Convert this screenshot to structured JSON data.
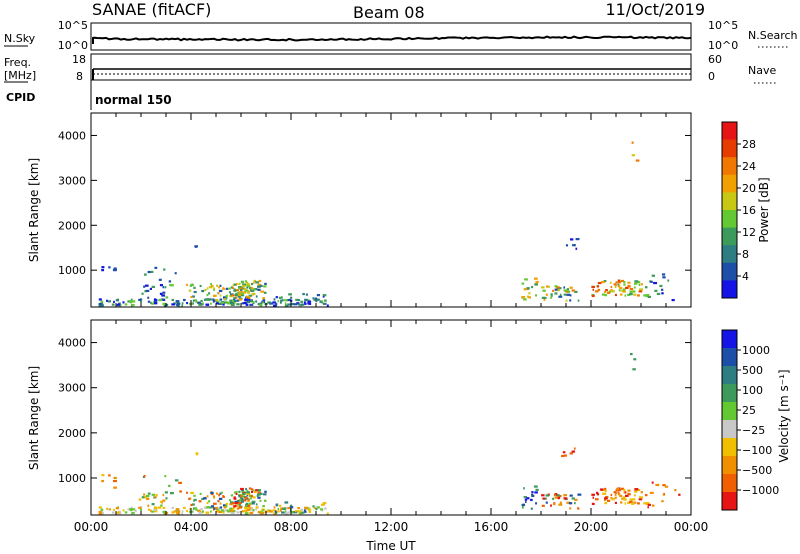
{
  "header": {
    "station": "SANAE (fitACF)",
    "beam": "Beam 08",
    "date": "11/Oct/2019"
  },
  "params": {
    "nsky_label": "N.Sky",
    "nsearch_label": "N.Search",
    "freq_label_top": "Freq.",
    "freq_label_unit": "[MHz]",
    "nave_label": "Nave",
    "cpid_label": "CPID",
    "cpid_value": "normal 150",
    "noise_ticks": [
      "10^5",
      "10^0"
    ],
    "noise_right_ticks": [
      "10^5",
      "10^0"
    ],
    "freq_ticks": [
      "18",
      "8"
    ],
    "nave_ticks": [
      "60",
      "0"
    ]
  },
  "colors": {
    "power_scale": [
      "#1414e6",
      "#1e4fa8",
      "#2d7d82",
      "#3c9a5a",
      "#64c832",
      "#c8c814",
      "#f0a000",
      "#f07800",
      "#e63c00",
      "#e61414"
    ],
    "velocity_scale": [
      "#1414e6",
      "#1e4fa8",
      "#2d7d82",
      "#3c9a5a",
      "#64c832",
      "#c8c8c8",
      "#f0c000",
      "#f09000",
      "#f06000",
      "#e61414"
    ]
  },
  "chart_data": [
    {
      "type": "heatmap",
      "name": "power",
      "ylabel": "Slant Range [km]",
      "yticks": [
        1000,
        2000,
        3000,
        4000
      ],
      "ylim": [
        180,
        4500
      ],
      "xlim_hours": [
        0,
        24
      ],
      "colorbar_label": "Power [dB]",
      "colorbar_ticks": [
        "4",
        "8",
        "12",
        "16",
        "20",
        "24",
        "28"
      ],
      "clusters": [
        {
          "t": [
            0.4,
            0.9
          ],
          "r": [
            850,
            1050
          ],
          "n": 5,
          "mix": [
            0,
            1
          ]
        },
        {
          "t": [
            0.3,
            9.5
          ],
          "r": [
            190,
            330
          ],
          "n": 150,
          "mix": [
            0,
            1,
            2,
            3,
            4
          ]
        },
        {
          "t": [
            1.8,
            3.2
          ],
          "r": [
            300,
            650
          ],
          "n": 22,
          "mix": [
            0,
            1,
            3,
            4
          ]
        },
        {
          "t": [
            2.0,
            3.6
          ],
          "r": [
            650,
            1050
          ],
          "n": 8,
          "mix": [
            3,
            4,
            1
          ]
        },
        {
          "t": [
            3.8,
            7.0
          ],
          "r": [
            280,
            680
          ],
          "n": 90,
          "mix": [
            2,
            3,
            4,
            5,
            6,
            1
          ]
        },
        {
          "t": [
            5.6,
            6.9
          ],
          "r": [
            350,
            750
          ],
          "n": 40,
          "mix": [
            4,
            5,
            6,
            7,
            3
          ]
        },
        {
          "t": [
            7.3,
            9.4
          ],
          "r": [
            200,
            450
          ],
          "n": 24,
          "mix": [
            0,
            1,
            2,
            3
          ]
        },
        {
          "t": [
            4.1,
            4.3
          ],
          "r": [
            1480,
            1560
          ],
          "n": 2,
          "mix": [
            1
          ]
        },
        {
          "t": [
            17.2,
            17.8
          ],
          "r": [
            300,
            800
          ],
          "n": 18,
          "mix": [
            3,
            4,
            5,
            6
          ]
        },
        {
          "t": [
            18.0,
            19.5
          ],
          "r": [
            300,
            650
          ],
          "n": 35,
          "mix": [
            1,
            3,
            4,
            5,
            6,
            7
          ]
        },
        {
          "t": [
            18.8,
            19.4
          ],
          "r": [
            1450,
            1700
          ],
          "n": 6,
          "mix": [
            0,
            1,
            3
          ]
        },
        {
          "t": [
            20.0,
            22.2
          ],
          "r": [
            400,
            750
          ],
          "n": 70,
          "mix": [
            4,
            5,
            6,
            7,
            3,
            8
          ]
        },
        {
          "t": [
            21.5,
            22.0
          ],
          "r": [
            3200,
            3950
          ],
          "n": 3,
          "mix": [
            7,
            5
          ]
        },
        {
          "t": [
            22.2,
            23.6
          ],
          "r": [
            300,
            900
          ],
          "n": 14,
          "mix": [
            0,
            1,
            3
          ]
        }
      ]
    },
    {
      "type": "heatmap",
      "name": "velocity",
      "ylabel": "Slant Range [km]",
      "yticks": [
        1000,
        2000,
        3000,
        4000
      ],
      "ylim": [
        180,
        4500
      ],
      "xlim_hours": [
        0,
        24
      ],
      "xticks": [
        "00:00",
        "04:00",
        "08:00",
        "12:00",
        "16:00",
        "20:00",
        "00:00"
      ],
      "xlabel": "Time UT",
      "colorbar_label": "Velocity [m s⁻¹]",
      "colorbar_ticks": [
        "1000",
        "500",
        "100",
        "25",
        "−25",
        "−100",
        "−500",
        "−1000"
      ],
      "clusters": [
        {
          "t": [
            0.4,
            0.9
          ],
          "r": [
            650,
            1050
          ],
          "n": 6,
          "mix": [
            6,
            7,
            8
          ]
        },
        {
          "t": [
            0.3,
            9.5
          ],
          "r": [
            190,
            330
          ],
          "n": 160,
          "mix": [
            6,
            7,
            5,
            4
          ]
        },
        {
          "t": [
            1.8,
            3.2
          ],
          "r": [
            300,
            650
          ],
          "n": 22,
          "mix": [
            6,
            7,
            4,
            3
          ]
        },
        {
          "t": [
            2.0,
            3.6
          ],
          "r": [
            650,
            1050
          ],
          "n": 8,
          "mix": [
            3,
            4,
            8
          ]
        },
        {
          "t": [
            3.8,
            7.0
          ],
          "r": [
            280,
            680
          ],
          "n": 90,
          "mix": [
            3,
            4,
            6,
            7,
            8,
            1
          ]
        },
        {
          "t": [
            5.6,
            6.9
          ],
          "r": [
            350,
            750
          ],
          "n": 40,
          "mix": [
            2,
            3,
            4,
            8,
            9
          ]
        },
        {
          "t": [
            7.3,
            9.4
          ],
          "r": [
            200,
            450
          ],
          "n": 24,
          "mix": [
            1,
            2,
            3,
            6
          ]
        },
        {
          "t": [
            4.1,
            4.3
          ],
          "r": [
            1480,
            1560
          ],
          "n": 2,
          "mix": [
            6
          ]
        },
        {
          "t": [
            17.2,
            17.8
          ],
          "r": [
            300,
            800
          ],
          "n": 18,
          "mix": [
            0,
            1,
            2,
            3
          ]
        },
        {
          "t": [
            18.0,
            19.5
          ],
          "r": [
            300,
            650
          ],
          "n": 35,
          "mix": [
            7,
            8,
            9,
            1,
            3
          ]
        },
        {
          "t": [
            18.8,
            19.4
          ],
          "r": [
            1450,
            1700
          ],
          "n": 6,
          "mix": [
            8,
            9
          ]
        },
        {
          "t": [
            20.0,
            22.2
          ],
          "r": [
            400,
            750
          ],
          "n": 70,
          "mix": [
            6,
            7,
            8,
            9
          ]
        },
        {
          "t": [
            21.5,
            22.0
          ],
          "r": [
            3200,
            3950
          ],
          "n": 3,
          "mix": [
            2,
            3
          ]
        },
        {
          "t": [
            22.2,
            23.6
          ],
          "r": [
            300,
            900
          ],
          "n": 14,
          "mix": [
            7,
            8,
            9
          ]
        }
      ]
    }
  ]
}
